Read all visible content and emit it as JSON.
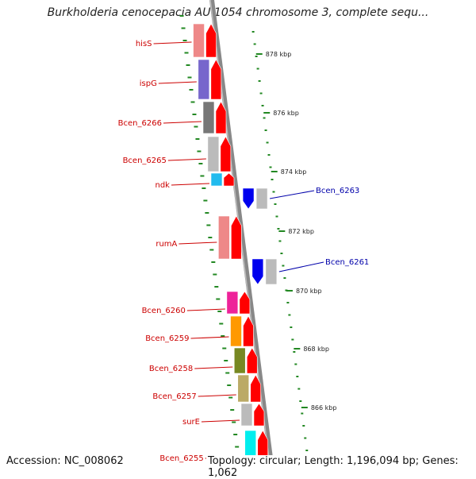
{
  "title": "Burkholderia cenocepacia AU 1054 chromosome 3, complete sequ...",
  "footer": {
    "accession": "Accession: NC_008062",
    "summary": "Topology: circular; Length: 1,196,094 bp; Genes: 1,062"
  },
  "colors": {
    "label_left": "#cc0000",
    "label_right": "#0000aa",
    "arrow_red": "#ff0000",
    "arrow_blue": "#0000ee",
    "backbone": "#888888",
    "ticks": "#228822"
  },
  "kbp_ticks": [
    "878 kbp",
    "876 kbp",
    "874 kbp",
    "872 kbp",
    "870 kbp",
    "868 kbp",
    "866 kbp"
  ],
  "genes_forward": [
    {
      "label": "hisS",
      "color": "#ee8888"
    },
    {
      "label": "ispG",
      "color": "#7766cc"
    },
    {
      "label": "Bcen_6266",
      "color": "#777777"
    },
    {
      "label": "Bcen_6265",
      "color": "#bbbbbb"
    },
    {
      "label": "ndk",
      "color": "#22bbee"
    },
    {
      "label": "rumA",
      "color": "#ee8888"
    },
    {
      "label": "Bcen_6260",
      "color": "#ee2299"
    },
    {
      "label": "Bcen_6259",
      "color": "#ff9900"
    },
    {
      "label": "Bcen_6258",
      "color": "#778822"
    },
    {
      "label": "Bcen_6257",
      "color": "#bbaa66"
    },
    {
      "label": "surE",
      "color": "#bbbbbb"
    },
    {
      "label": "Bcen_6255",
      "color": "#00eeee"
    }
  ],
  "genes_reverse": [
    {
      "label": "Bcen_6263",
      "color": "#bbbbbb"
    },
    {
      "label": "Bcen_6261",
      "color": "#bbbbbb"
    }
  ]
}
